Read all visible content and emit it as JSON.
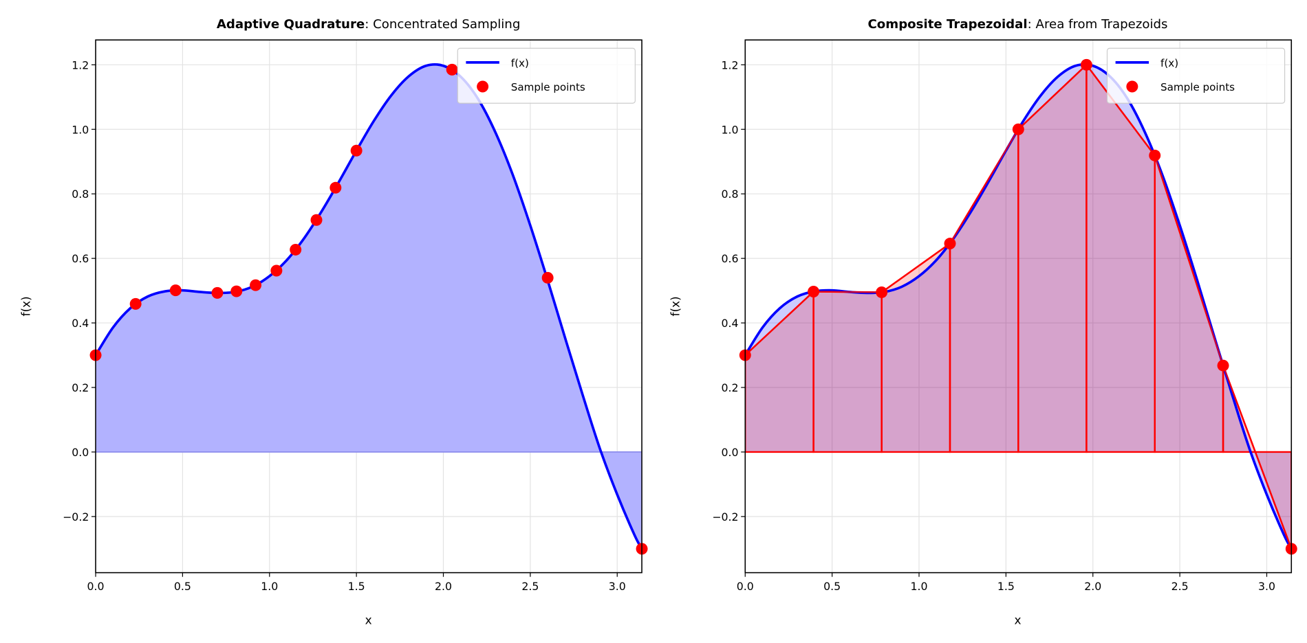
{
  "chart_data": [
    {
      "type": "line",
      "title_bold": "Adaptive Quadrature",
      "title_rest": ": Concentrated Sampling",
      "xlabel": "x",
      "ylabel": "f(x)",
      "xlim": [
        0,
        3.1416
      ],
      "ylim": [
        -0.374,
        1.277
      ],
      "grid": true,
      "legend_position": "top-right",
      "xticks": [
        "0.0",
        "0.5",
        "1.0",
        "1.5",
        "2.0",
        "2.5",
        "3.0"
      ],
      "yticks": [
        "−0.2",
        "0.0",
        "0.2",
        "0.4",
        "0.6",
        "0.8",
        "1.0",
        "1.2"
      ],
      "curve": {
        "name": "f(x)",
        "color": "#0000ff",
        "fill_color": "#b2b2ff",
        "x": [
          0,
          0.1,
          0.2,
          0.3,
          0.4,
          0.5,
          0.6,
          0.7,
          0.8,
          0.9,
          1.0,
          1.1,
          1.2,
          1.3,
          1.4,
          1.5,
          1.6,
          1.7,
          1.8,
          1.9,
          2.0,
          2.1,
          2.2,
          2.3,
          2.4,
          2.5,
          2.6,
          2.7,
          2.8,
          2.9,
          3.0,
          3.1,
          3.1416
        ],
        "y": [
          0.3,
          0.386,
          0.446,
          0.482,
          0.498,
          0.501,
          0.496,
          0.493,
          0.496,
          0.512,
          0.545,
          0.595,
          0.663,
          0.746,
          0.838,
          0.934,
          1.026,
          1.105,
          1.164,
          1.197,
          1.197,
          1.163,
          1.094,
          0.99,
          0.858,
          0.702,
          0.532,
          0.354,
          0.179,
          0.011,
          -0.132,
          -0.258,
          -0.3
        ]
      },
      "samples": {
        "name": "Sample points",
        "color": "#ff0000",
        "x": [
          0,
          0.23,
          0.46,
          0.7,
          0.81,
          0.92,
          1.04,
          1.15,
          1.27,
          1.38,
          1.5,
          2.05,
          2.6,
          3.1416
        ],
        "y": [
          0.3,
          0.459,
          0.501,
          0.493,
          0.498,
          0.517,
          0.562,
          0.627,
          0.719,
          0.819,
          0.934,
          1.185,
          0.54,
          -0.3
        ]
      }
    },
    {
      "type": "line",
      "title_bold": "Composite Trapezoidal",
      "title_rest": ": Area from Trapezoids",
      "xlabel": "x",
      "ylabel": "f(x)",
      "xlim": [
        0,
        3.1416
      ],
      "ylim": [
        -0.374,
        1.277
      ],
      "grid": true,
      "legend_position": "top-right",
      "xticks": [
        "0.0",
        "0.5",
        "1.0",
        "1.5",
        "2.0",
        "2.5",
        "3.0"
      ],
      "yticks": [
        "−0.2",
        "0.0",
        "0.2",
        "0.4",
        "0.6",
        "0.8",
        "1.0",
        "1.2"
      ],
      "curve": {
        "name": "f(x)",
        "color": "#0000ff",
        "fill_color": "#b2b2ff",
        "x": [
          0,
          0.1,
          0.2,
          0.3,
          0.4,
          0.5,
          0.6,
          0.7,
          0.8,
          0.9,
          1.0,
          1.1,
          1.2,
          1.3,
          1.4,
          1.5,
          1.6,
          1.7,
          1.8,
          1.9,
          2.0,
          2.1,
          2.2,
          2.3,
          2.4,
          2.5,
          2.6,
          2.7,
          2.8,
          2.9,
          3.0,
          3.1,
          3.1416
        ],
        "y": [
          0.3,
          0.386,
          0.446,
          0.482,
          0.498,
          0.501,
          0.496,
          0.493,
          0.496,
          0.512,
          0.545,
          0.595,
          0.663,
          0.746,
          0.838,
          0.934,
          1.026,
          1.105,
          1.164,
          1.197,
          1.197,
          1.163,
          1.094,
          0.99,
          0.858,
          0.702,
          0.532,
          0.354,
          0.179,
          0.011,
          -0.132,
          -0.258,
          -0.3
        ]
      },
      "samples": {
        "name": "Sample points",
        "color": "#ff0000",
        "x": [
          0,
          0.393,
          0.785,
          1.178,
          1.571,
          1.963,
          2.356,
          2.749,
          3.1416
        ],
        "y": [
          0.3,
          0.497,
          0.495,
          0.646,
          1.0,
          1.2,
          0.919,
          0.268,
          -0.3
        ]
      },
      "trapezoid_color": "#ff0000"
    }
  ]
}
